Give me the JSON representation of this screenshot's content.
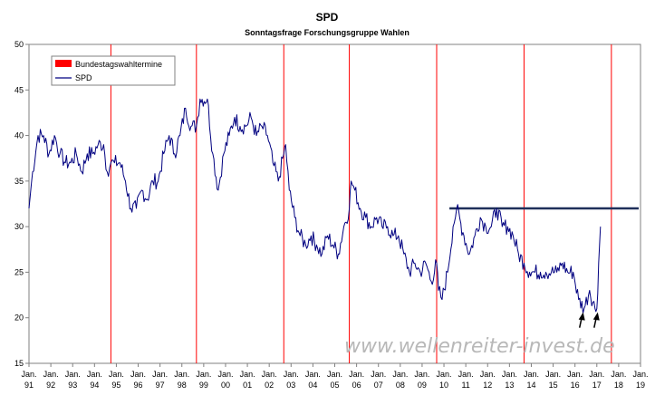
{
  "chart_data": {
    "type": "line",
    "title": "SPD",
    "subtitle": "Sonntagsfrage Forschungsgruppe Wahlen",
    "ylim": [
      15,
      50
    ],
    "y_ticks": [
      "15",
      "20",
      "25",
      "30",
      "35",
      "40",
      "45",
      "50"
    ],
    "x_range": [
      1991,
      2019
    ],
    "x_tick_labels": [
      [
        "Jan.",
        "91"
      ],
      [
        "Jan.",
        "92"
      ],
      [
        "Jan.",
        "93"
      ],
      [
        "Jan.",
        "94"
      ],
      [
        "Jan.",
        "95"
      ],
      [
        "Jan.",
        "96"
      ],
      [
        "Jan.",
        "97"
      ],
      [
        "Jan.",
        "98"
      ],
      [
        "Jan.",
        "99"
      ],
      [
        "Jan.",
        "00"
      ],
      [
        "Jan.",
        "01"
      ],
      [
        "Jan.",
        "02"
      ],
      [
        "Jan.",
        "03"
      ],
      [
        "Jan.",
        "04"
      ],
      [
        "Jan.",
        "05"
      ],
      [
        "Jan.",
        "06"
      ],
      [
        "Jan.",
        "07"
      ],
      [
        "Jan.",
        "08"
      ],
      [
        "Jan.",
        "09"
      ],
      [
        "Jan.",
        "10"
      ],
      [
        "Jan.",
        "11"
      ],
      [
        "Jan.",
        "12"
      ],
      [
        "Jan.",
        "13"
      ],
      [
        "Jan.",
        "14"
      ],
      [
        "Jan.",
        "15"
      ],
      [
        "Jan.",
        "16"
      ],
      [
        "Jan.",
        "17"
      ],
      [
        "Jan.",
        "18"
      ],
      [
        "Jan.",
        "19"
      ]
    ],
    "grid": false,
    "legend": {
      "position": "top-left",
      "items": [
        {
          "name": "Bundestagswahltermine",
          "color": "#ff0000",
          "kind": "box"
        },
        {
          "name": "SPD",
          "color": "#000080",
          "kind": "line"
        }
      ]
    },
    "election_dates": [
      "1994-10",
      "1998-09",
      "2002-09",
      "2005-09",
      "2009-09",
      "2013-09",
      "2017-09"
    ],
    "resistance_line": {
      "from": "2010-04",
      "to": "2018-12",
      "value": 32,
      "color": "#1f2f5a"
    },
    "series": [
      {
        "name": "SPD",
        "color": "#000080",
        "points": [
          [
            "1991-01",
            32
          ],
          [
            "1991-03",
            36
          ],
          [
            "1991-06",
            40
          ],
          [
            "1991-09",
            40
          ],
          [
            "1991-12",
            38
          ],
          [
            "1992-03",
            40
          ],
          [
            "1992-06",
            38
          ],
          [
            "1992-09",
            37
          ],
          [
            "1992-12",
            37
          ],
          [
            "1993-03",
            38
          ],
          [
            "1993-06",
            36
          ],
          [
            "1993-09",
            38
          ],
          [
            "1993-12",
            38
          ],
          [
            "1994-03",
            39
          ],
          [
            "1994-06",
            39
          ],
          [
            "1994-08",
            36
          ],
          [
            "1994-10",
            37
          ],
          [
            "1994-12",
            37
          ],
          [
            "1995-03",
            37
          ],
          [
            "1995-06",
            35
          ],
          [
            "1995-09",
            32
          ],
          [
            "1995-12",
            32
          ],
          [
            "1996-03",
            34
          ],
          [
            "1996-06",
            33
          ],
          [
            "1996-09",
            35
          ],
          [
            "1996-12",
            35
          ],
          [
            "1997-03",
            38
          ],
          [
            "1997-06",
            40
          ],
          [
            "1997-09",
            38
          ],
          [
            "1997-12",
            40
          ],
          [
            "1998-03",
            43
          ],
          [
            "1998-06",
            41
          ],
          [
            "1998-09",
            41
          ],
          [
            "1998-11",
            44
          ],
          [
            "1999-03",
            44
          ],
          [
            "1999-06",
            38
          ],
          [
            "1999-09",
            34
          ],
          [
            "1999-12",
            38
          ],
          [
            "2000-03",
            40
          ],
          [
            "2000-06",
            42
          ],
          [
            "2000-09",
            41
          ],
          [
            "2000-12",
            41
          ],
          [
            "2001-03",
            42
          ],
          [
            "2001-06",
            40
          ],
          [
            "2001-09",
            41
          ],
          [
            "2001-12",
            40
          ],
          [
            "2002-03",
            37
          ],
          [
            "2002-06",
            35
          ],
          [
            "2002-09",
            38
          ],
          [
            "2002-10",
            39
          ],
          [
            "2002-12",
            34
          ],
          [
            "2003-03",
            31
          ],
          [
            "2003-06",
            29
          ],
          [
            "2003-09",
            28
          ],
          [
            "2003-12",
            29
          ],
          [
            "2004-03",
            28
          ],
          [
            "2004-06",
            27
          ],
          [
            "2004-09",
            29
          ],
          [
            "2004-12",
            28
          ],
          [
            "2005-03",
            27
          ],
          [
            "2005-06",
            30
          ],
          [
            "2005-09",
            32
          ],
          [
            "2005-10",
            35
          ],
          [
            "2005-12",
            34
          ],
          [
            "2006-03",
            32
          ],
          [
            "2006-06",
            31
          ],
          [
            "2006-09",
            30
          ],
          [
            "2006-12",
            31
          ],
          [
            "2007-03",
            30
          ],
          [
            "2007-06",
            30
          ],
          [
            "2007-09",
            29
          ],
          [
            "2007-12",
            29
          ],
          [
            "2008-03",
            27
          ],
          [
            "2008-06",
            25
          ],
          [
            "2008-09",
            26
          ],
          [
            "2008-12",
            25
          ],
          [
            "2009-03",
            26
          ],
          [
            "2009-06",
            24
          ],
          [
            "2009-09",
            26
          ],
          [
            "2009-10",
            23
          ],
          [
            "2009-12",
            22
          ],
          [
            "2010-03",
            25
          ],
          [
            "2010-06",
            30
          ],
          [
            "2010-08",
            32
          ],
          [
            "2010-12",
            29
          ],
          [
            "2011-03",
            27
          ],
          [
            "2011-06",
            29
          ],
          [
            "2011-09",
            31
          ],
          [
            "2011-12",
            30
          ],
          [
            "2012-03",
            30
          ],
          [
            "2012-06",
            32
          ],
          [
            "2012-09",
            30
          ],
          [
            "2012-12",
            30
          ],
          [
            "2013-03",
            29
          ],
          [
            "2013-06",
            27
          ],
          [
            "2013-09",
            26
          ],
          [
            "2013-12",
            25
          ],
          [
            "2014-03",
            25
          ],
          [
            "2014-06",
            25
          ],
          [
            "2014-09",
            25
          ],
          [
            "2014-12",
            25
          ],
          [
            "2015-03",
            25
          ],
          [
            "2015-06",
            26
          ],
          [
            "2015-09",
            25
          ],
          [
            "2015-12",
            25
          ],
          [
            "2016-03",
            22
          ],
          [
            "2016-06",
            21
          ],
          [
            "2016-09",
            23
          ],
          [
            "2016-12",
            21
          ],
          [
            "2017-01",
            21
          ],
          [
            "2017-02",
            26
          ],
          [
            "2017-03",
            30
          ]
        ]
      }
    ],
    "annotations": [
      {
        "kind": "arrow",
        "at": "2016-05",
        "value": 20.5
      },
      {
        "kind": "arrow",
        "at": "2017-01",
        "value": 20.5
      }
    ]
  },
  "watermark": "www.wellenreiter-invest.de"
}
